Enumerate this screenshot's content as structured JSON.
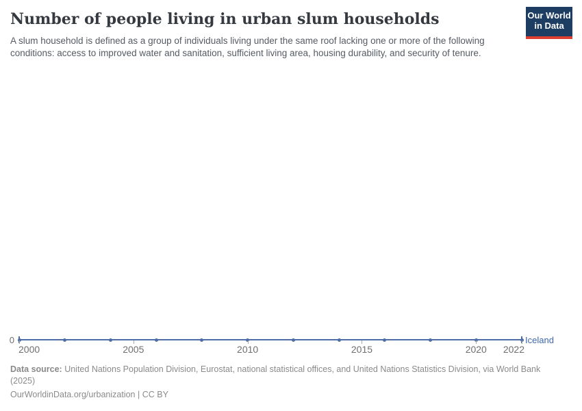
{
  "header": {
    "title": "Number of people living in urban slum households",
    "subtitle": "A slum household is defined as a group of individuals living under the same roof lacking one or more of the following conditions: access to improved water and sanitation, sufficient living area, housing durability, and security of tenure."
  },
  "logo": {
    "line1": "Our World",
    "line2": "in Data"
  },
  "chart_data": {
    "type": "line",
    "title": "Number of people living in urban slum households",
    "x": [
      2000,
      2002,
      2004,
      2006,
      2008,
      2010,
      2012,
      2014,
      2016,
      2018,
      2020,
      2022
    ],
    "series": [
      {
        "name": "Iceland",
        "values": [
          0,
          0,
          0,
          0,
          0,
          0,
          0,
          0,
          0,
          0,
          0,
          0
        ]
      }
    ],
    "x_range": [
      2000,
      2022
    ],
    "x_ticks": [
      2000,
      2005,
      2010,
      2015,
      2020,
      2022
    ],
    "x_tick_labels": [
      "2000",
      "2005",
      "2010",
      "2015",
      "2020",
      "2022"
    ],
    "y_zero_label": "0",
    "ylim": [
      0,
      0
    ],
    "grid": false,
    "legend_position": "right-of-line",
    "entity_label": "Iceland"
  },
  "colors": {
    "line": "#4c6da8",
    "entity_label": "#3d66ad",
    "logo_background": "#1d3d63",
    "logo_underline": "#dc3e32",
    "title_text": "#353a41",
    "axis_text": "#6f6f6f",
    "footer_text": "#8a8a8a"
  },
  "footer": {
    "datasource_label": "Data source:",
    "datasource_text": " United Nations Population Division, Eurostat, national statistical offices, and United Nations Statistics Division, via World Bank (2025)",
    "url_text": "OurWorldinData.org/urbanization",
    "separator": " | ",
    "license_text": "CC BY"
  }
}
